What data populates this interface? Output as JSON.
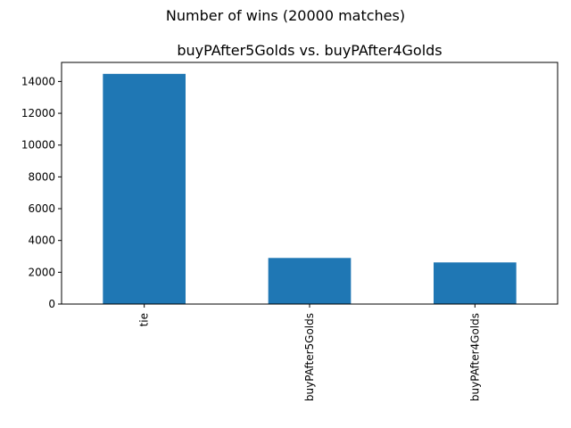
{
  "chart_data": {
    "type": "bar",
    "suptitle": "Number of wins (20000 matches)",
    "title": "buyPAfter5Golds vs. buyPAfter4Golds",
    "xlabel": "",
    "ylabel": "",
    "categories": [
      "tie",
      "buyPAfter5Golds",
      "buyPAfter4Golds"
    ],
    "values": [
      14480,
      2900,
      2620
    ],
    "ylim": [
      0,
      15200
    ],
    "yticks": [
      0,
      2000,
      4000,
      6000,
      8000,
      10000,
      12000,
      14000
    ],
    "ytick_labels": [
      "0",
      "2000",
      "4000",
      "6000",
      "8000",
      "10000",
      "12000",
      "14000"
    ],
    "grid": false,
    "legend": "none",
    "bar_color": "#1f77b4"
  }
}
